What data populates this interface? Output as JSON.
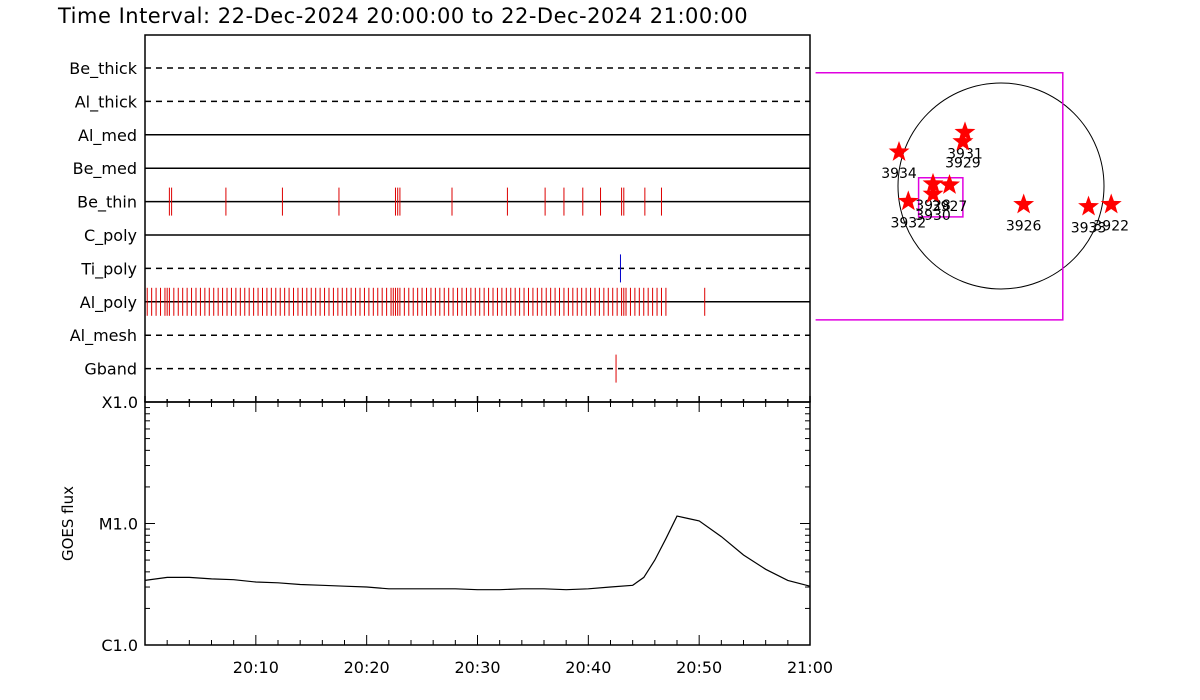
{
  "title": "Time Interval: 22-Dec-2024 20:00:00 to 22-Dec-2024 21:00:00",
  "colors": {
    "event_red": "#dd0000",
    "event_blue": "#0000cc",
    "fov_magenta": "#e000e0",
    "star_red": "#ff0000",
    "line_black": "#000000"
  },
  "chart_data": [
    {
      "type": "event-timeline",
      "x_unit": "minutes after 20:00",
      "xlim": [
        0,
        60
      ],
      "channels": [
        {
          "name": "Be_thick",
          "style": "dashed",
          "events": []
        },
        {
          "name": "Al_thick",
          "style": "dashed",
          "events": []
        },
        {
          "name": "Al_med",
          "style": "solid",
          "events": []
        },
        {
          "name": "Be_med",
          "style": "solid",
          "events": []
        },
        {
          "name": "Be_thin",
          "style": "solid",
          "color": "red",
          "events": [
            2.2,
            2.4,
            7.3,
            12.4,
            17.5,
            22.6,
            22.8,
            23.0,
            27.7,
            32.7,
            36.1,
            37.8,
            39.5,
            41.1,
            43.0,
            43.2,
            45.1,
            46.6
          ]
        },
        {
          "name": "C_poly",
          "style": "solid",
          "events": []
        },
        {
          "name": "Ti_poly",
          "style": "dashed",
          "color": "blue",
          "events": [
            42.9
          ]
        },
        {
          "name": "Al_poly",
          "style": "solid",
          "color": "red",
          "events_note": "dense",
          "events": [
            0.2,
            0.6,
            1.0,
            1.4,
            1.8,
            2.0,
            2.2,
            2.6,
            3.0,
            3.4,
            3.8,
            4.2,
            4.6,
            5.0,
            5.4,
            5.8,
            6.2,
            6.6,
            7.0,
            7.4,
            7.8,
            8.2,
            8.6,
            9.0,
            9.4,
            9.8,
            10.2,
            10.6,
            11.0,
            11.4,
            11.8,
            12.2,
            12.6,
            13.0,
            13.4,
            13.8,
            14.2,
            14.6,
            15.0,
            15.4,
            15.8,
            16.2,
            16.6,
            17.0,
            17.4,
            17.8,
            18.2,
            18.6,
            19.0,
            19.4,
            19.8,
            20.2,
            20.6,
            21.0,
            21.4,
            21.8,
            22.2,
            22.4,
            22.6,
            22.8,
            23.0,
            23.4,
            23.8,
            24.2,
            24.6,
            25.0,
            25.4,
            25.8,
            26.2,
            26.6,
            27.0,
            27.4,
            27.8,
            28.2,
            28.6,
            29.0,
            29.4,
            29.8,
            30.2,
            30.6,
            31.0,
            31.4,
            31.8,
            32.2,
            32.6,
            33.0,
            33.4,
            33.8,
            34.2,
            34.6,
            35.0,
            35.4,
            35.8,
            36.2,
            36.6,
            37.0,
            37.4,
            37.8,
            38.2,
            38.6,
            39.0,
            39.4,
            39.8,
            40.2,
            40.6,
            41.0,
            41.4,
            41.8,
            42.2,
            42.6,
            43.0,
            43.2,
            43.4,
            43.8,
            44.2,
            44.6,
            45.0,
            45.4,
            45.8,
            46.2,
            46.6,
            47.0,
            50.5
          ]
        },
        {
          "name": "Al_mesh",
          "style": "dashed",
          "events": []
        },
        {
          "name": "Gband",
          "style": "dashed",
          "color": "red",
          "events": [
            42.5
          ]
        }
      ]
    },
    {
      "type": "line",
      "ylabel": "GOES flux",
      "y_scale": "log",
      "yticks": [
        "C1.0",
        "M1.0",
        "X1.0"
      ],
      "ylim": [
        1e-06,
        0.0001
      ],
      "x_unit": "minutes after 20:00",
      "xlim": [
        0,
        60
      ],
      "xticks": [
        "20:10",
        "20:20",
        "20:30",
        "20:40",
        "20:50",
        "21:00"
      ],
      "x": [
        0,
        2,
        4,
        6,
        8,
        10,
        12,
        14,
        16,
        18,
        20,
        22,
        24,
        26,
        28,
        30,
        32,
        34,
        36,
        38,
        40,
        42,
        44,
        45,
        46,
        47,
        48,
        49,
        50,
        52,
        54,
        56,
        58,
        60
      ],
      "y": [
        3.4e-06,
        3.6e-06,
        3.6e-06,
        3.5e-06,
        3.45e-06,
        3.3e-06,
        3.25e-06,
        3.15e-06,
        3.1e-06,
        3.05e-06,
        3e-06,
        2.9e-06,
        2.9e-06,
        2.9e-06,
        2.9e-06,
        2.85e-06,
        2.85e-06,
        2.9e-06,
        2.9e-06,
        2.85e-06,
        2.9e-06,
        3e-06,
        3.1e-06,
        3.6e-06,
        5e-06,
        7.5e-06,
        1.15e-05,
        1.1e-05,
        1.05e-05,
        7.8e-06,
        5.5e-06,
        4.2e-06,
        3.4e-06,
        3.05e-06
      ]
    },
    {
      "type": "scatter",
      "description_units": "solar disk map, coordinates in solar radii (x right, y up)",
      "active_regions": [
        {
          "label": "3931",
          "x": -0.35,
          "y": 0.52
        },
        {
          "label": "3929",
          "x": -0.37,
          "y": 0.43
        },
        {
          "label": "3934",
          "x": -0.99,
          "y": 0.33
        },
        {
          "label": "3932",
          "x": -0.9,
          "y": -0.15
        },
        {
          "label": "3928",
          "x": -0.66,
          "y": 0.02
        },
        {
          "label": "3930",
          "x": -0.66,
          "y": -0.08
        },
        {
          "label": "3927",
          "x": -0.5,
          "y": 0.01
        },
        {
          "label": "3926",
          "x": 0.22,
          "y": -0.18
        },
        {
          "label": "3933",
          "x": 0.85,
          "y": -0.2
        },
        {
          "label": "3922",
          "x": 1.07,
          "y": -0.18
        }
      ],
      "annotations": [
        {
          "kind": "field-of-view-large",
          "x": [
            -1.8,
            0.6
          ],
          "y": [
            1.1,
            -1.3
          ]
        },
        {
          "kind": "field-of-view-small",
          "x": [
            -0.8,
            -0.37
          ],
          "y": [
            0.08,
            -0.3
          ]
        }
      ]
    }
  ]
}
